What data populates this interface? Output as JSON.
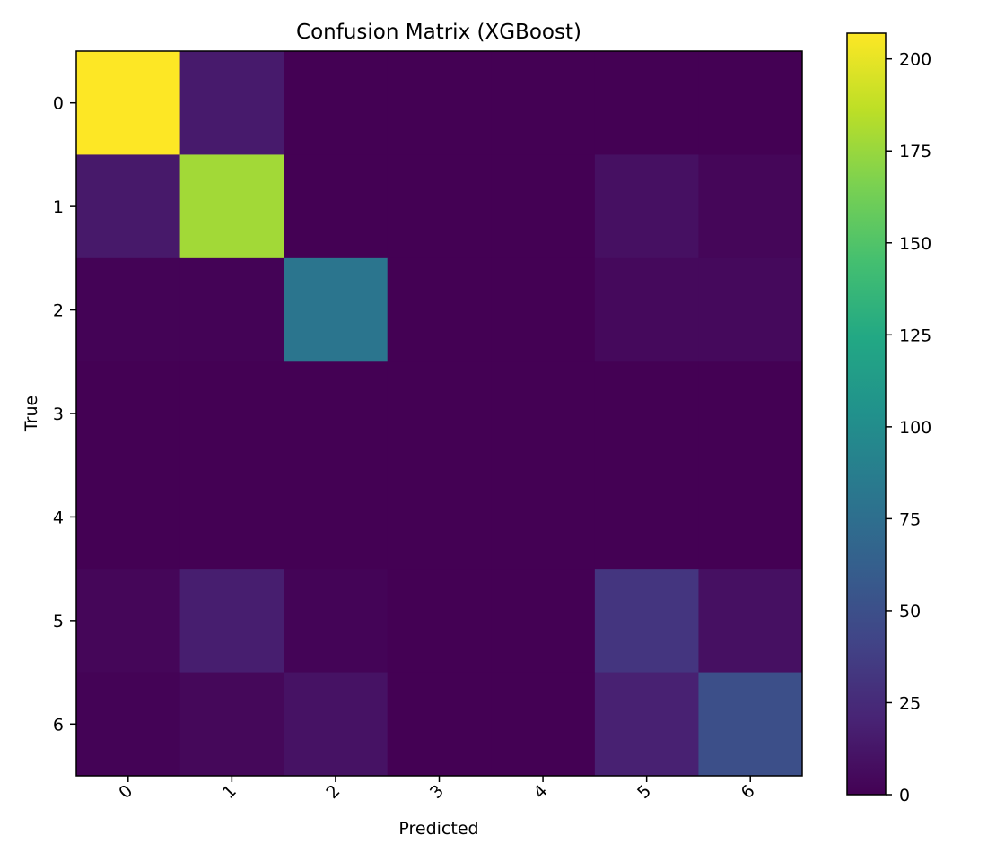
{
  "chart_data": {
    "type": "heatmap",
    "title": "Confusion Matrix (XGBoost)",
    "xlabel": "Predicted",
    "ylabel": "True",
    "x_categories": [
      "0",
      "1",
      "2",
      "3",
      "4",
      "5",
      "6"
    ],
    "y_categories": [
      "0",
      "1",
      "2",
      "3",
      "4",
      "5",
      "6"
    ],
    "values": [
      [
        207,
        15,
        0,
        0,
        0,
        0,
        0
      ],
      [
        14,
        178,
        0,
        0,
        0,
        9,
        3
      ],
      [
        1,
        1,
        80,
        0,
        0,
        5,
        5
      ],
      [
        0,
        0,
        0,
        0,
        0,
        0,
        0
      ],
      [
        0,
        0,
        0,
        0,
        0,
        0,
        0
      ],
      [
        3,
        17,
        2,
        0,
        0,
        32,
        9
      ],
      [
        1,
        4,
        10,
        0,
        0,
        19,
        50
      ]
    ],
    "colormap": "viridis",
    "colorbar": {
      "min": 0,
      "max": 207,
      "ticks": [
        "0",
        "25",
        "50",
        "75",
        "100",
        "125",
        "150",
        "175",
        "200"
      ]
    },
    "x_tick_rotation_deg": 45,
    "grid": false
  }
}
